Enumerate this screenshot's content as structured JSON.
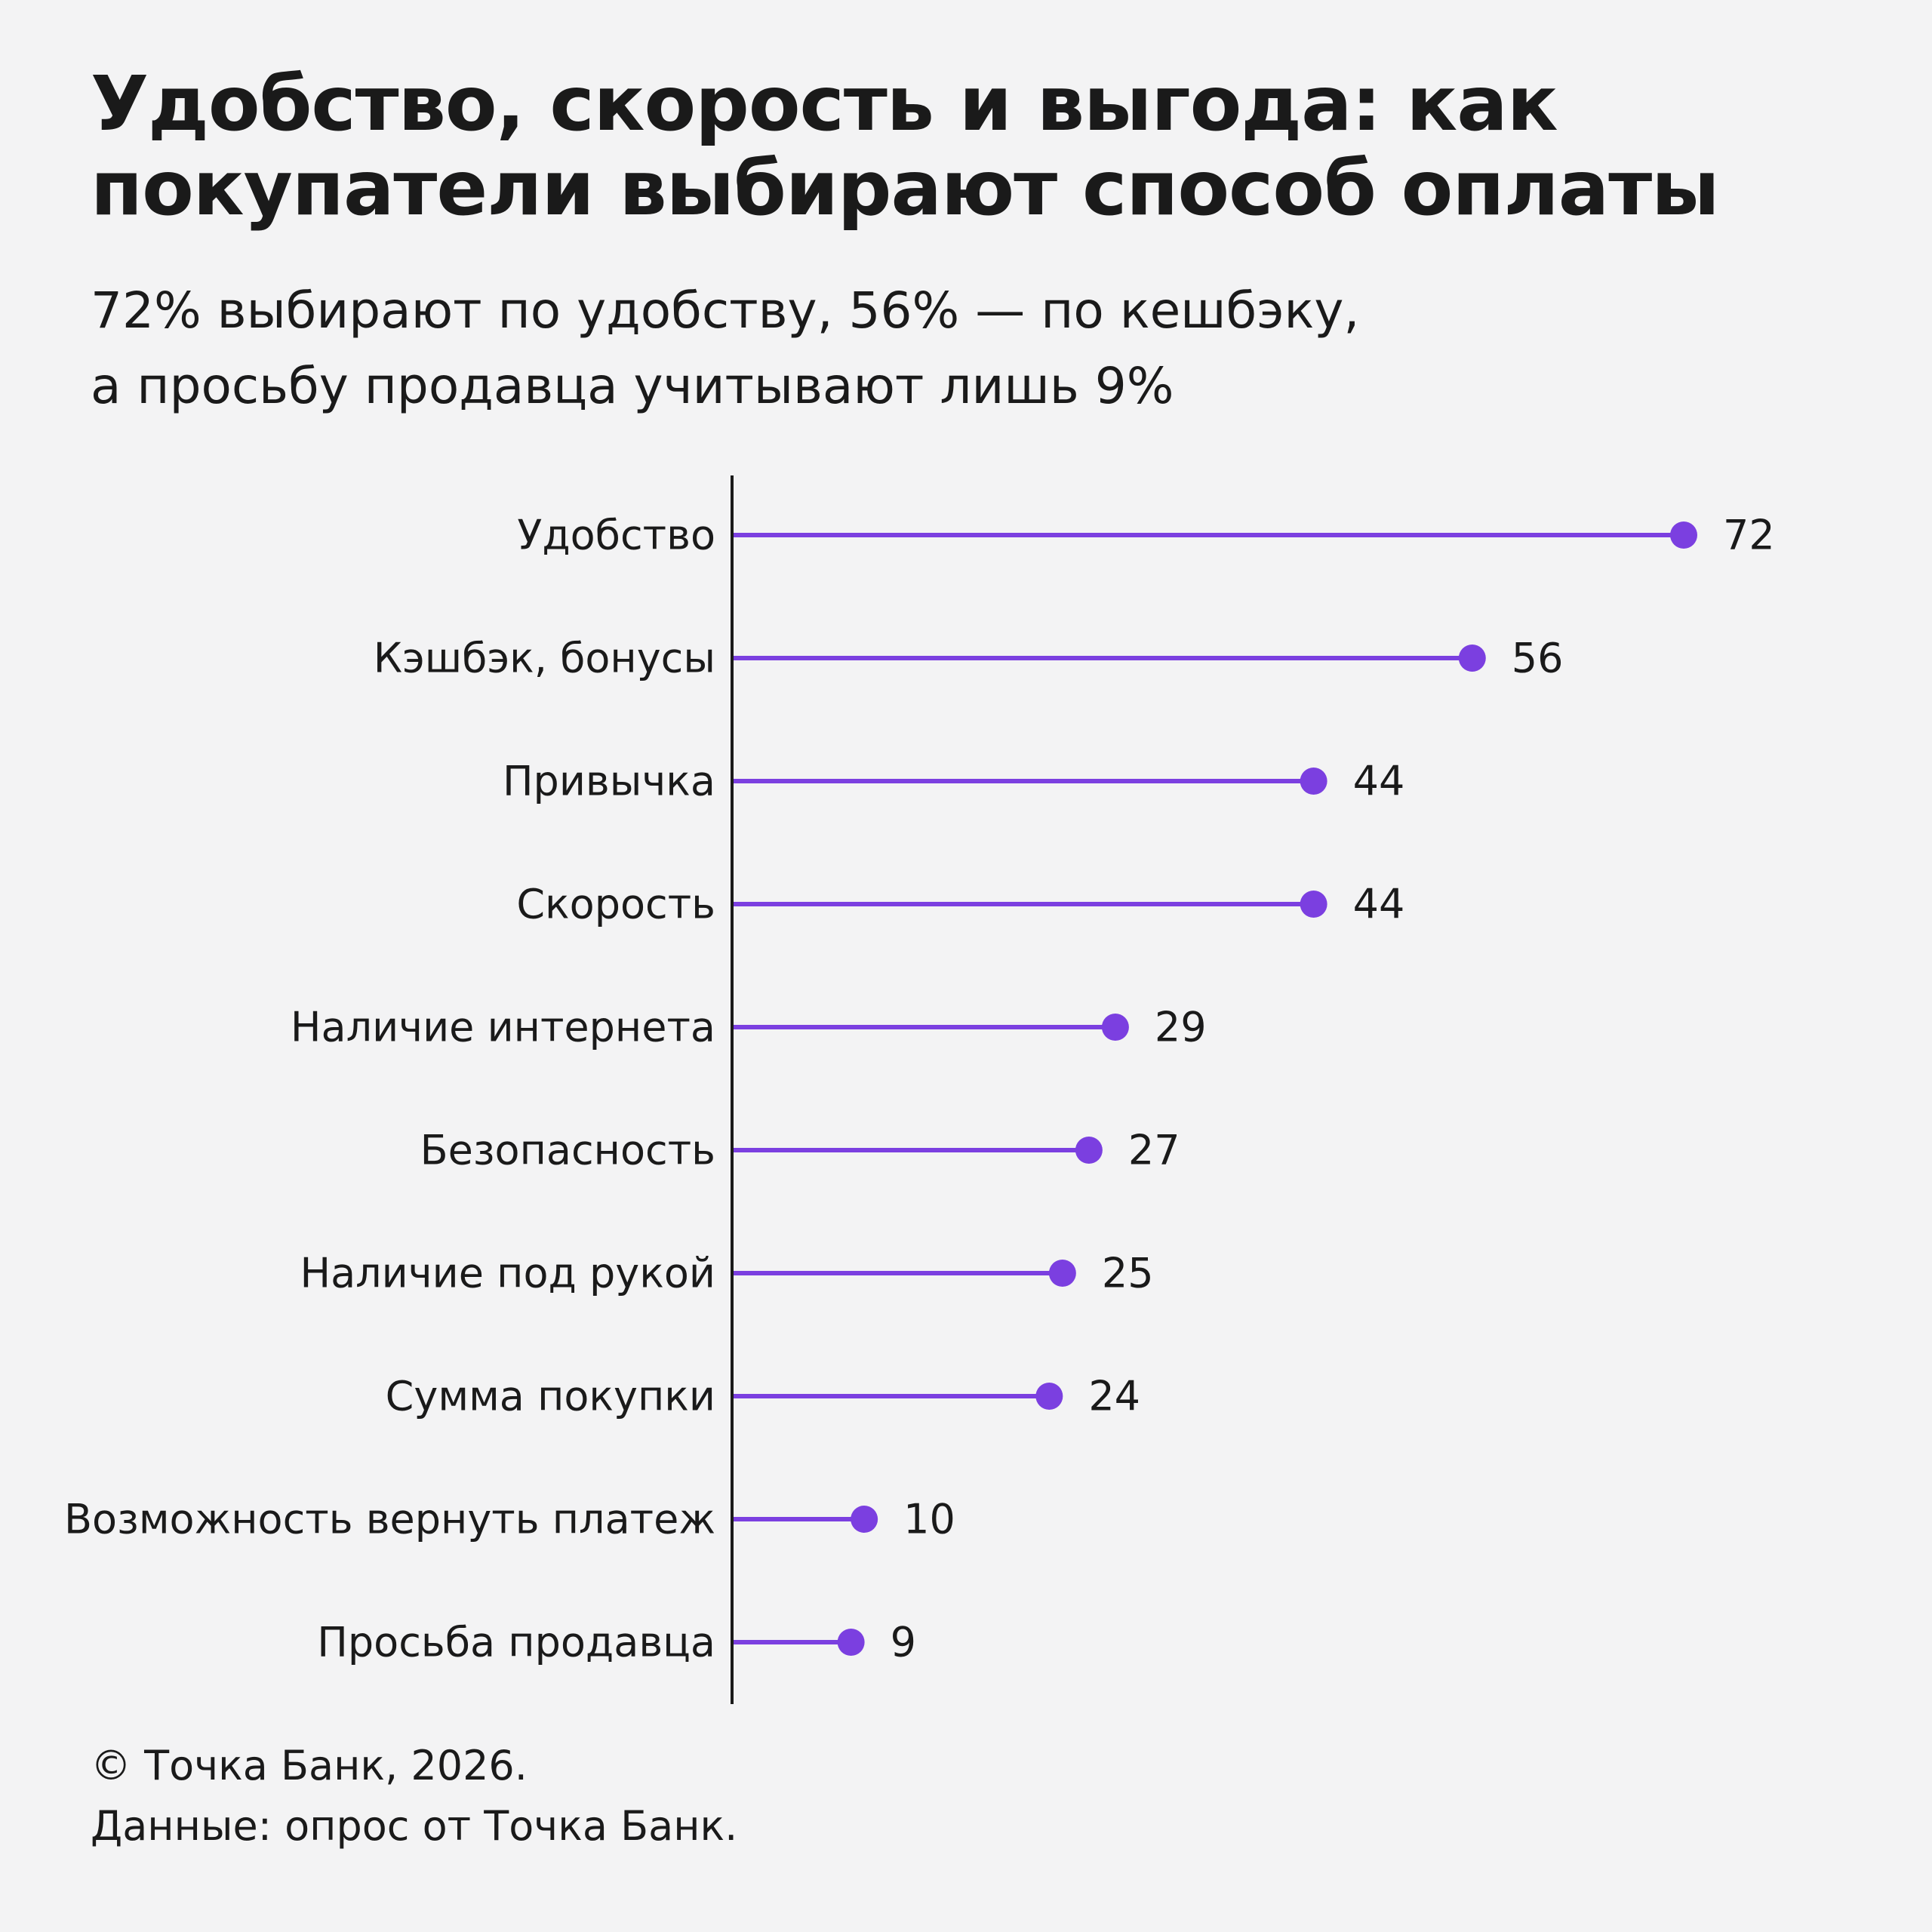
{
  "header": {
    "title": "Удобство, скорость и выгода: как покупатели выбирают способ оплаты",
    "subtitle_line1": "72% выбирают по удобству, 56% — по кешбэку,",
    "subtitle_line2": "а просьбу продавца учитывают лишь 9%"
  },
  "footer": {
    "copyright": "© Точка Банк, 2026.",
    "source": "Данные: опрос от Точка Банк."
  },
  "colors": {
    "accent": "#7b3fe0",
    "axis": "#1a1a1a",
    "text": "#1a1a1a",
    "background": "#f3f3f4"
  },
  "chart_data": {
    "type": "lollipop-horizontal",
    "categories": [
      "Удобство",
      "Кэшбэк, бонусы",
      "Привычка",
      "Скорость",
      "Наличие интернета",
      "Безопасность",
      "Наличие под рукой",
      "Сумма покупки",
      "Возможность вернуть платеж",
      "Просьба продавца"
    ],
    "values": [
      72,
      56,
      44,
      44,
      29,
      27,
      25,
      24,
      10,
      9
    ],
    "xlim": [
      0,
      72
    ],
    "grid": false,
    "legend": "none"
  }
}
